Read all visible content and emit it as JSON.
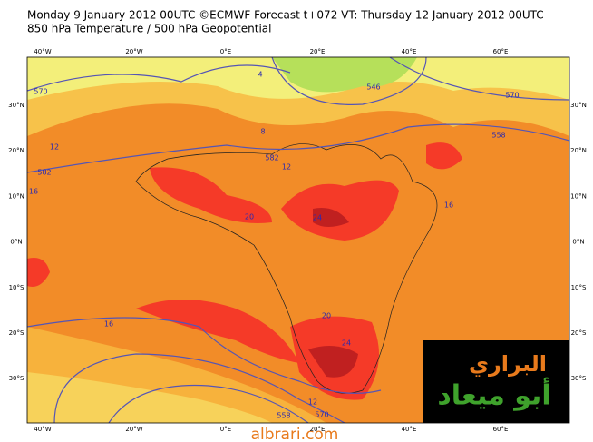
{
  "header": {
    "line1": "Monday 9 January 2012 00UTC ©ECMWF Forecast t+072 VT: Thursday 12 January 2012 00UTC",
    "line2": "850 hPa Temperature / 500 hPa Geopotential"
  },
  "map": {
    "lon_labels": [
      "40°W",
      "20°W",
      "0°E",
      "20°E",
      "40°E",
      "60°E"
    ],
    "lat_labels": [
      "30°N",
      "20°N",
      "10°N",
      "0°N",
      "10°S",
      "20°S",
      "30°S"
    ],
    "contour_labels": [
      570,
      582,
      12,
      16,
      20,
      24,
      8,
      4,
      546,
      558,
      582,
      570,
      12,
      16,
      20,
      24,
      16,
      12,
      558,
      570
    ]
  },
  "logo": {
    "line1": "البراري",
    "line2": "أبو ميعاد"
  },
  "footer": {
    "site": "albrari.com"
  }
}
